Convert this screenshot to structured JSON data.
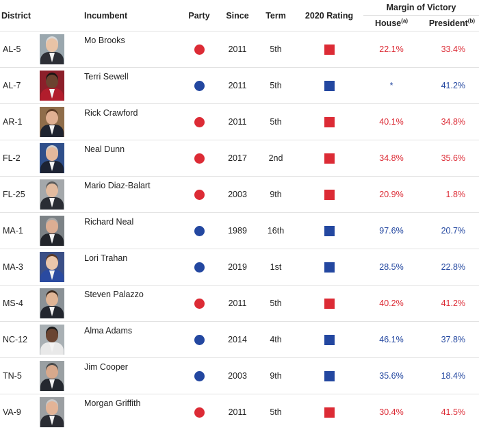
{
  "headers": {
    "district": "District",
    "incumbent": "Incumbent",
    "party": "Party",
    "since": "Since",
    "term": "Term",
    "rating": "2020 Rating",
    "margin_group": "Margin of Victory",
    "house": "House",
    "house_note": "(a)",
    "president": "President",
    "president_note": "(b)"
  },
  "colors": {
    "republican": "#dc2b35",
    "democrat": "#2347a0"
  },
  "rows": [
    {
      "district": "AL-5",
      "name": "Mo Brooks",
      "party": "republican",
      "since": "2011",
      "term": "5th",
      "rating": "republican",
      "house": "22.1%",
      "house_party": "republican",
      "president": "33.4%",
      "president_party": "republican",
      "photo": {
        "bg": "#9aa7ae",
        "skin": "#e8c3a6",
        "hair": "#d9d9d9",
        "suit": "#2d2f36"
      }
    },
    {
      "district": "AL-7",
      "name": "Terri Sewell",
      "party": "democrat",
      "since": "2011",
      "term": "5th",
      "rating": "democrat",
      "house": "*",
      "house_party": "democrat",
      "president": "41.2%",
      "president_party": "democrat",
      "photo": {
        "bg": "#8c1f2a",
        "skin": "#6b4330",
        "hair": "#1a1412",
        "suit": "#b11d2c"
      }
    },
    {
      "district": "AR-1",
      "name": "Rick Crawford",
      "party": "republican",
      "since": "2011",
      "term": "5th",
      "rating": "republican",
      "house": "40.1%",
      "house_party": "republican",
      "president": "34.8%",
      "president_party": "republican",
      "photo": {
        "bg": "#8f6d4a",
        "skin": "#e0b092",
        "hair": "#5a3a23",
        "suit": "#1f2430"
      }
    },
    {
      "district": "FL-2",
      "name": "Neal Dunn",
      "party": "republican",
      "since": "2017",
      "term": "2nd",
      "rating": "republican",
      "house": "34.8%",
      "house_party": "republican",
      "president": "35.6%",
      "president_party": "republican",
      "photo": {
        "bg": "#2f4f8a",
        "skin": "#e4b99c",
        "hair": "#cfcfcf",
        "suit": "#1c2333"
      }
    },
    {
      "district": "FL-25",
      "name": "Mario Diaz-Balart",
      "party": "republican",
      "since": "2003",
      "term": "9th",
      "rating": "republican",
      "house": "20.9%",
      "house_party": "republican",
      "president": "1.8%",
      "president_party": "republican",
      "photo": {
        "bg": "#a4a8ab",
        "skin": "#e2bb9f",
        "hair": "#5b5b5b",
        "suit": "#2a2d34"
      }
    },
    {
      "district": "MA-1",
      "name": "Richard Neal",
      "party": "democrat",
      "since": "1989",
      "term": "16th",
      "rating": "democrat",
      "house": "97.6%",
      "house_party": "democrat",
      "president": "20.7%",
      "president_party": "democrat",
      "photo": {
        "bg": "#7c8286",
        "skin": "#dcae93",
        "hair": "#a8a8a8",
        "suit": "#22252b"
      }
    },
    {
      "district": "MA-3",
      "name": "Lori Trahan",
      "party": "democrat",
      "since": "2019",
      "term": "1st",
      "rating": "democrat",
      "house": "28.5%",
      "house_party": "democrat",
      "president": "22.8%",
      "president_party": "democrat",
      "photo": {
        "bg": "#3b4f86",
        "skin": "#eac6ab",
        "hair": "#5a3a28",
        "suit": "#2a4aa0"
      }
    },
    {
      "district": "MS-4",
      "name": "Steven Palazzo",
      "party": "republican",
      "since": "2011",
      "term": "5th",
      "rating": "republican",
      "house": "40.2%",
      "house_party": "republican",
      "president": "41.2%",
      "president_party": "republican",
      "photo": {
        "bg": "#8a9196",
        "skin": "#e0b596",
        "hair": "#3b2a1f",
        "suit": "#22262e"
      }
    },
    {
      "district": "NC-12",
      "name": "Alma Adams",
      "party": "democrat",
      "since": "2014",
      "term": "4th",
      "rating": "democrat",
      "house": "46.1%",
      "house_party": "democrat",
      "president": "37.8%",
      "president_party": "democrat",
      "photo": {
        "bg": "#a9b0b4",
        "skin": "#6a4532",
        "hair": "#1c1c1c",
        "suit": "#e9e9e9"
      }
    },
    {
      "district": "TN-5",
      "name": "Jim Cooper",
      "party": "democrat",
      "since": "2003",
      "term": "9th",
      "rating": "democrat",
      "house": "35.6%",
      "house_party": "democrat",
      "president": "18.4%",
      "president_party": "democrat",
      "photo": {
        "bg": "#9aa0a3",
        "skin": "#d8a98c",
        "hair": "#4a4a4a",
        "suit": "#24282f"
      }
    },
    {
      "district": "VA-9",
      "name": "Morgan Griffith",
      "party": "republican",
      "since": "2011",
      "term": "5th",
      "rating": "republican",
      "house": "30.4%",
      "house_party": "republican",
      "president": "41.5%",
      "president_party": "republican",
      "photo": {
        "bg": "#9b9fa2",
        "skin": "#e3b497",
        "hair": "#c9c9c9",
        "suit": "#2a2c33"
      }
    }
  ]
}
